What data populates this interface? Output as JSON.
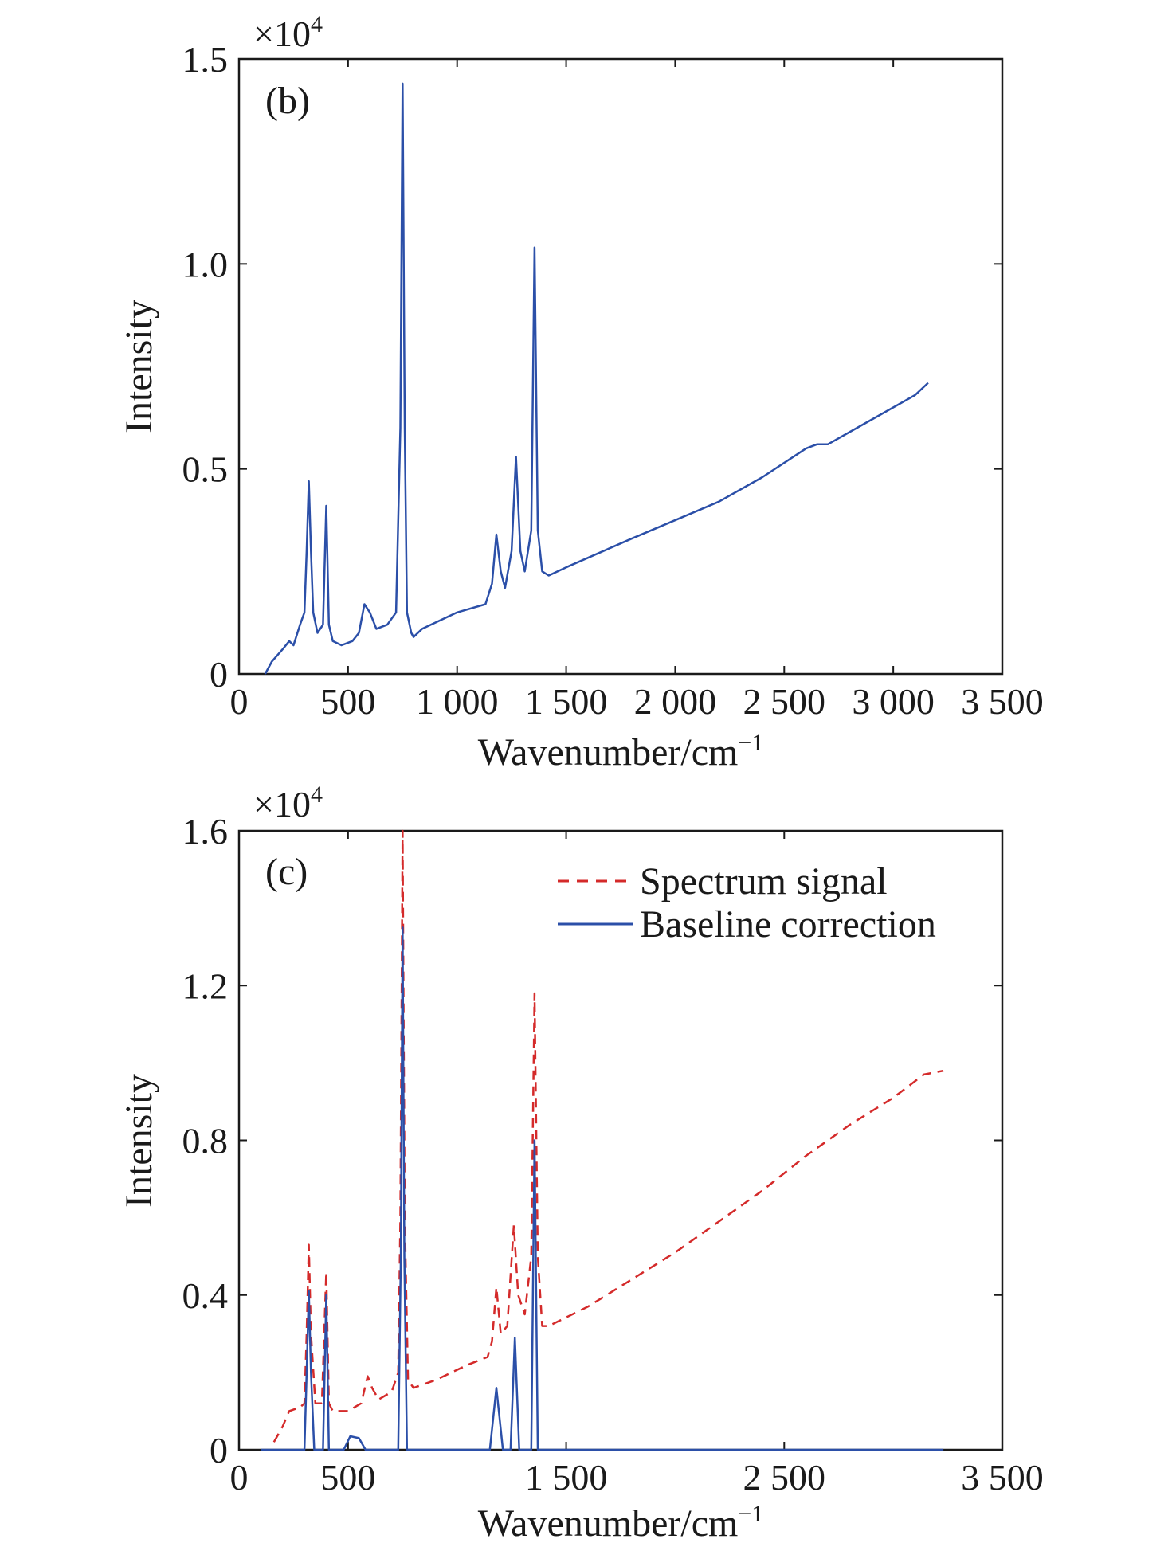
{
  "chart_data": [
    {
      "panel_label": "(b)",
      "type": "line",
      "exponent_label": "×10",
      "exponent_power": "4",
      "xlabel": "Wavenumber/cm",
      "xlabel_sup": "−1",
      "ylabel": "Intensity",
      "xlim": [
        0,
        3500
      ],
      "ylim": [
        0,
        1.5
      ],
      "x_ticks": [
        0,
        500,
        1000,
        1500,
        2000,
        2500,
        3000,
        3500
      ],
      "x_tick_labels": [
        "0",
        "500",
        "1 000",
        "1 500",
        "2 000",
        "2 500",
        "3 000",
        "3 500"
      ],
      "y_ticks": [
        0,
        0.5,
        1.0,
        1.5
      ],
      "y_tick_labels": [
        "0",
        "0.5",
        "1.0",
        "1.5"
      ],
      "grid": false,
      "series": [
        {
          "color": "#2b4fa8",
          "style": "solid",
          "points": [
            [
              120,
              0.0
            ],
            [
              150,
              0.03
            ],
            [
              200,
              0.06
            ],
            [
              230,
              0.08
            ],
            [
              250,
              0.07
            ],
            [
              280,
              0.12
            ],
            [
              300,
              0.15
            ],
            [
              310,
              0.3
            ],
            [
              320,
              0.47
            ],
            [
              330,
              0.3
            ],
            [
              340,
              0.15
            ],
            [
              360,
              0.1
            ],
            [
              385,
              0.12
            ],
            [
              400,
              0.41
            ],
            [
              412,
              0.12
            ],
            [
              430,
              0.08
            ],
            [
              470,
              0.07
            ],
            [
              520,
              0.08
            ],
            [
              550,
              0.1
            ],
            [
              575,
              0.17
            ],
            [
              600,
              0.15
            ],
            [
              630,
              0.11
            ],
            [
              680,
              0.12
            ],
            [
              720,
              0.15
            ],
            [
              740,
              0.6
            ],
            [
              750,
              1.44
            ],
            [
              760,
              0.6
            ],
            [
              770,
              0.15
            ],
            [
              790,
              0.1
            ],
            [
              800,
              0.09
            ],
            [
              840,
              0.11
            ],
            [
              1000,
              0.15
            ],
            [
              1130,
              0.17
            ],
            [
              1160,
              0.22
            ],
            [
              1180,
              0.34
            ],
            [
              1200,
              0.25
            ],
            [
              1220,
              0.21
            ],
            [
              1250,
              0.3
            ],
            [
              1270,
              0.53
            ],
            [
              1290,
              0.3
            ],
            [
              1310,
              0.25
            ],
            [
              1340,
              0.35
            ],
            [
              1355,
              1.04
            ],
            [
              1370,
              0.35
            ],
            [
              1390,
              0.25
            ],
            [
              1420,
              0.24
            ],
            [
              1500,
              0.26
            ],
            [
              1800,
              0.33
            ],
            [
              2200,
              0.42
            ],
            [
              2400,
              0.48
            ],
            [
              2600,
              0.55
            ],
            [
              2650,
              0.56
            ],
            [
              2700,
              0.56
            ],
            [
              2900,
              0.62
            ],
            [
              3100,
              0.68
            ],
            [
              3160,
              0.71
            ]
          ]
        }
      ]
    },
    {
      "panel_label": "(c)",
      "type": "line",
      "exponent_label": "×10",
      "exponent_power": "4",
      "xlabel": "Wavenumber/cm",
      "xlabel_sup": "−1",
      "ylabel": "Intensity",
      "xlim": [
        0,
        3500
      ],
      "ylim": [
        0,
        1.6
      ],
      "x_ticks": [
        0,
        500,
        1500,
        2500,
        3500
      ],
      "x_tick_labels": [
        "0",
        "500",
        "1 500",
        "2 500",
        "3 500"
      ],
      "y_ticks": [
        0,
        0.4,
        0.8,
        1.2,
        1.6
      ],
      "y_tick_labels": [
        "0",
        "0.4",
        "0.8",
        "1.2",
        "1.6"
      ],
      "grid": false,
      "legend_position": "top-right",
      "series": [
        {
          "name": "Spectrum signal",
          "color": "#d42a2a",
          "style": "dashed",
          "points": [
            [
              160,
              0.02
            ],
            [
              200,
              0.06
            ],
            [
              230,
              0.1
            ],
            [
              280,
              0.11
            ],
            [
              300,
              0.12
            ],
            [
              310,
              0.3
            ],
            [
              320,
              0.53
            ],
            [
              330,
              0.3
            ],
            [
              350,
              0.12
            ],
            [
              380,
              0.12
            ],
            [
              400,
              0.46
            ],
            [
              412,
              0.12
            ],
            [
              430,
              0.1
            ],
            [
              500,
              0.1
            ],
            [
              560,
              0.12
            ],
            [
              590,
              0.19
            ],
            [
              610,
              0.16
            ],
            [
              640,
              0.13
            ],
            [
              700,
              0.15
            ],
            [
              730,
              0.2
            ],
            [
              740,
              0.6
            ],
            [
              750,
              1.6
            ],
            [
              760,
              0.6
            ],
            [
              775,
              0.18
            ],
            [
              800,
              0.16
            ],
            [
              900,
              0.18
            ],
            [
              1050,
              0.22
            ],
            [
              1140,
              0.24
            ],
            [
              1160,
              0.28
            ],
            [
              1180,
              0.42
            ],
            [
              1200,
              0.3
            ],
            [
              1230,
              0.32
            ],
            [
              1260,
              0.58
            ],
            [
              1280,
              0.4
            ],
            [
              1310,
              0.35
            ],
            [
              1340,
              0.5
            ],
            [
              1355,
              1.18
            ],
            [
              1370,
              0.5
            ],
            [
              1390,
              0.32
            ],
            [
              1420,
              0.32
            ],
            [
              1600,
              0.37
            ],
            [
              1800,
              0.44
            ],
            [
              2000,
              0.51
            ],
            [
              2200,
              0.59
            ],
            [
              2400,
              0.67
            ],
            [
              2600,
              0.76
            ],
            [
              2800,
              0.84
            ],
            [
              3000,
              0.91
            ],
            [
              3140,
              0.97
            ],
            [
              3230,
              0.98
            ]
          ]
        },
        {
          "name": "Baseline correction",
          "color": "#2b4fa8",
          "style": "solid",
          "points": [
            [
              100,
              0.0
            ],
            [
              300,
              0.0
            ],
            [
              310,
              0.2
            ],
            [
              320,
              0.41
            ],
            [
              330,
              0.2
            ],
            [
              345,
              0.0
            ],
            [
              385,
              0.0
            ],
            [
              400,
              0.4
            ],
            [
              412,
              0.0
            ],
            [
              480,
              0.0
            ],
            [
              510,
              0.035
            ],
            [
              550,
              0.03
            ],
            [
              580,
              0.0
            ],
            [
              730,
              0.0
            ],
            [
              742,
              0.5
            ],
            [
              750,
              1.35
            ],
            [
              758,
              0.5
            ],
            [
              770,
              0.0
            ],
            [
              1150,
              0.0
            ],
            [
              1180,
              0.16
            ],
            [
              1210,
              0.0
            ],
            [
              1245,
              0.0
            ],
            [
              1265,
              0.29
            ],
            [
              1285,
              0.0
            ],
            [
              1340,
              0.0
            ],
            [
              1355,
              0.8
            ],
            [
              1370,
              0.0
            ],
            [
              1500,
              0.0
            ],
            [
              2000,
              0.0
            ],
            [
              2500,
              0.0
            ],
            [
              3000,
              0.0
            ],
            [
              3230,
              0.0
            ]
          ]
        }
      ]
    }
  ]
}
